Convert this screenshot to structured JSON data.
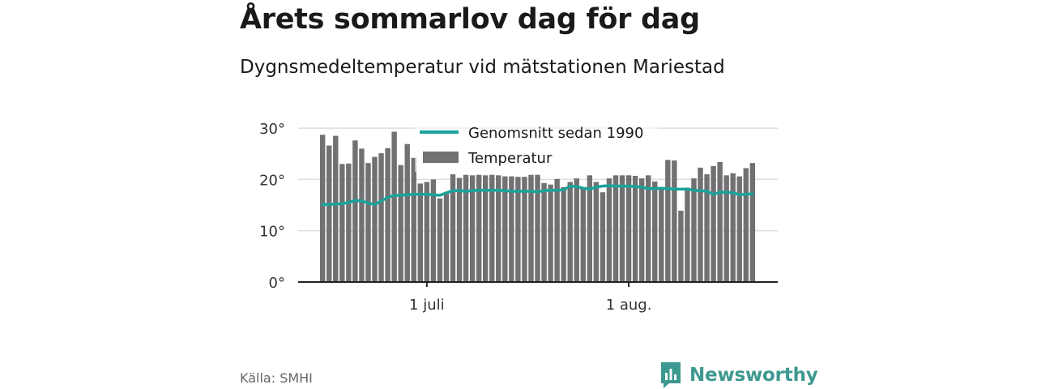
{
  "header": {
    "title": "Årets sommarlov dag för dag",
    "subtitle": "Dygnsmedeltemperatur vid mätstationen Mariestad"
  },
  "footer": {
    "source": "Källa: SMHI",
    "brand": "Newsworthy"
  },
  "colors": {
    "bar": "#717073",
    "bar_highlight": "#e6e6e6",
    "line": "#1aa39a",
    "grid": "#dddddd",
    "axis": "#222222",
    "brand": "#3d9990"
  },
  "chart_data": {
    "type": "bar",
    "title": "Årets sommarlov dag för dag",
    "subtitle": "Dygnsmedeltemperatur vid mätstationen Mariestad",
    "x_start": "2019-06-15",
    "ylim": [
      0,
      30
    ],
    "yticks": [
      0,
      10,
      20,
      30
    ],
    "ytick_labels": [
      "0°",
      "10°",
      "20°",
      "30°"
    ],
    "xticks": [
      {
        "date": "2019-07-01",
        "label": "1 juli"
      },
      {
        "date": "2019-08-01",
        "label": "1 aug."
      }
    ],
    "grid": true,
    "legend": {
      "placement": "top-center",
      "entries": [
        {
          "label": "Genomsnitt sedan 1990",
          "kind": "line"
        },
        {
          "label": "Temperatur",
          "kind": "bar"
        }
      ]
    },
    "series": [
      {
        "name": "Temperatur",
        "kind": "bar",
        "values": [
          28.7,
          26.6,
          28.5,
          23.0,
          23.1,
          27.6,
          26.0,
          23.2,
          24.4,
          25.1,
          26.1,
          29.3,
          22.8,
          26.9,
          24.2,
          19.2,
          19.5,
          20.0,
          16.3,
          17.2,
          21.0,
          20.3,
          20.9,
          20.8,
          20.9,
          20.8,
          20.9,
          20.8,
          20.6,
          20.6,
          20.5,
          20.5,
          20.9,
          20.9,
          19.3,
          19.0,
          20.1,
          18.5,
          19.5,
          20.2,
          18.4,
          20.8,
          19.5,
          17.5,
          20.2,
          20.8,
          20.8,
          20.8,
          20.7,
          20.2,
          20.8,
          19.6,
          18.0,
          23.8,
          23.7,
          13.9,
          18.4,
          20.2,
          22.3,
          21.0,
          22.6,
          23.4,
          20.8,
          21.2,
          20.6,
          22.2,
          23.2
        ]
      },
      {
        "name": "Genomsnitt sedan 1990",
        "kind": "line",
        "values": [
          15.1,
          15.1,
          15.2,
          15.3,
          15.5,
          15.9,
          15.8,
          15.4,
          15.1,
          15.8,
          16.5,
          16.9,
          16.9,
          17.0,
          17.1,
          17.1,
          17.1,
          17.0,
          16.9,
          17.4,
          17.8,
          17.8,
          17.7,
          17.8,
          17.9,
          17.9,
          17.9,
          17.9,
          17.8,
          17.7,
          17.7,
          17.7,
          17.7,
          17.6,
          17.8,
          17.9,
          17.9,
          18.0,
          18.7,
          18.6,
          18.3,
          18.1,
          18.5,
          18.7,
          18.8,
          18.7,
          18.7,
          18.7,
          18.6,
          18.5,
          18.2,
          18.2,
          18.3,
          18.2,
          18.1,
          18.1,
          18.1,
          17.9,
          17.8,
          17.7,
          17.1,
          17.5,
          17.5,
          17.4,
          17.0,
          17.1,
          17.2
        ]
      }
    ]
  }
}
